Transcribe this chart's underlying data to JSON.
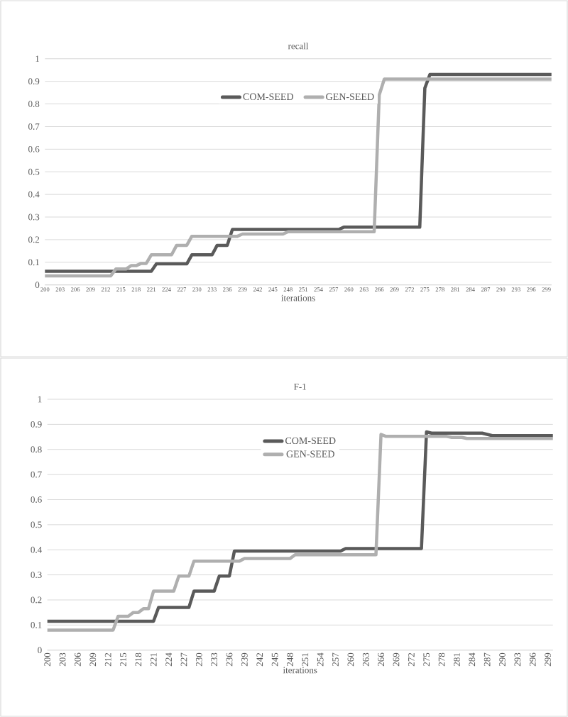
{
  "chart_data": [
    {
      "type": "line",
      "title": "recall",
      "xlabel": "iterations",
      "xlim": [
        200,
        300
      ],
      "ylim": [
        0,
        1
      ],
      "xticks": [
        200,
        203,
        206,
        209,
        212,
        215,
        218,
        221,
        224,
        227,
        230,
        233,
        236,
        239,
        242,
        245,
        248,
        251,
        254,
        257,
        260,
        263,
        266,
        269,
        272,
        275,
        278,
        281,
        284,
        287,
        290,
        293,
        296,
        299
      ],
      "yticks": [
        0,
        0.1,
        0.2,
        0.3,
        0.4,
        0.5,
        0.6,
        0.7,
        0.8,
        0.9,
        1
      ],
      "grid": "y",
      "legend": "top",
      "series": [
        {
          "name": "COM-SEED",
          "color": "#5a5a5a",
          "x": [
            200,
            221,
            222,
            228,
            229,
            233,
            234,
            236,
            237,
            258,
            259,
            274,
            275,
            276,
            300
          ],
          "values": [
            0.06,
            0.06,
            0.093,
            0.093,
            0.133,
            0.133,
            0.175,
            0.175,
            0.245,
            0.245,
            0.255,
            0.255,
            0.87,
            0.93,
            0.93
          ]
        },
        {
          "name": "GEN-SEED",
          "color": "#afafaf",
          "x": [
            200,
            213,
            214,
            216,
            217,
            218,
            219,
            220,
            221,
            225,
            226,
            228,
            229,
            238,
            239,
            247,
            248,
            265,
            266,
            267,
            300
          ],
          "values": [
            0.04,
            0.04,
            0.07,
            0.07,
            0.085,
            0.085,
            0.095,
            0.095,
            0.133,
            0.133,
            0.175,
            0.175,
            0.215,
            0.215,
            0.225,
            0.225,
            0.235,
            0.235,
            0.84,
            0.91,
            0.91
          ]
        }
      ]
    },
    {
      "type": "line",
      "title": "F-1",
      "xlabel": "iterations",
      "xlim": [
        200,
        300
      ],
      "ylim": [
        0,
        1
      ],
      "xticks": [
        200,
        203,
        206,
        209,
        212,
        215,
        218,
        221,
        224,
        227,
        230,
        233,
        236,
        239,
        242,
        245,
        248,
        251,
        254,
        257,
        260,
        263,
        266,
        269,
        272,
        275,
        278,
        281,
        284,
        287,
        290,
        293,
        296,
        299
      ],
      "yticks": [
        0,
        0.1,
        0.2,
        0.3,
        0.4,
        0.5,
        0.6,
        0.7,
        0.8,
        0.9,
        1
      ],
      "grid": "y",
      "legend": "top",
      "series": [
        {
          "name": "COM-SEED",
          "color": "#5a5a5a",
          "x": [
            200,
            221,
            222,
            228,
            229,
            233,
            234,
            236,
            237,
            258,
            259,
            274,
            275,
            276,
            286,
            288,
            300
          ],
          "values": [
            0.115,
            0.115,
            0.17,
            0.17,
            0.235,
            0.235,
            0.295,
            0.295,
            0.395,
            0.395,
            0.405,
            0.405,
            0.87,
            0.865,
            0.865,
            0.855,
            0.855
          ]
        },
        {
          "name": "GEN-SEED",
          "color": "#afafaf",
          "x": [
            200,
            213,
            214,
            216,
            217,
            218,
            219,
            220,
            221,
            225,
            226,
            228,
            229,
            238,
            239,
            248,
            249,
            265,
            266,
            267,
            279,
            280,
            282,
            283,
            300
          ],
          "values": [
            0.08,
            0.08,
            0.135,
            0.135,
            0.15,
            0.15,
            0.165,
            0.165,
            0.235,
            0.235,
            0.295,
            0.295,
            0.355,
            0.355,
            0.365,
            0.365,
            0.38,
            0.38,
            0.86,
            0.852,
            0.852,
            0.848,
            0.848,
            0.844,
            0.844
          ]
        }
      ]
    }
  ]
}
